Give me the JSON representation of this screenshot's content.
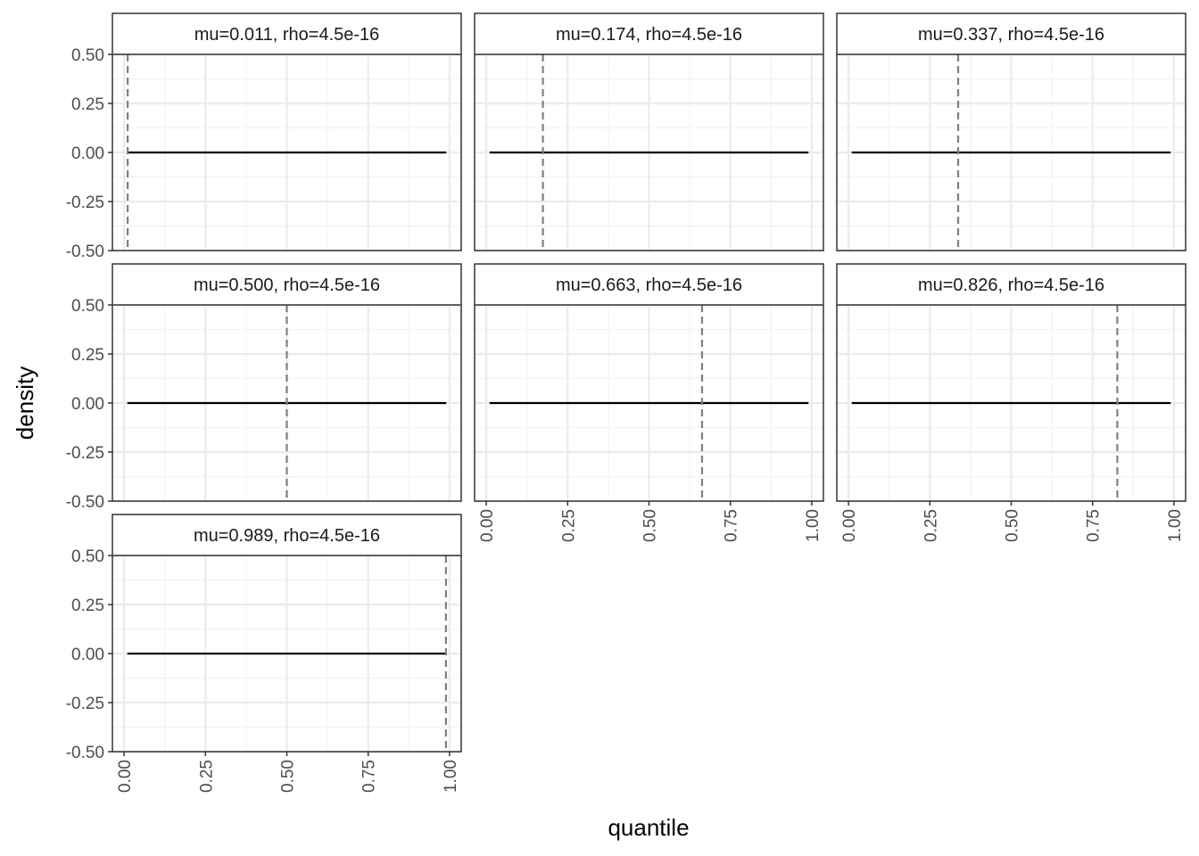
{
  "chart_data": {
    "type": "line",
    "xlabel": "quantile",
    "ylabel": "density",
    "xlim": [
      -0.0359,
      1.0359
    ],
    "ylim": [
      -0.5,
      0.5
    ],
    "x_ticks": [
      0.0,
      0.25,
      0.5,
      0.75,
      1.0
    ],
    "x_tick_labels": [
      "0.00",
      "0.25",
      "0.50",
      "0.75",
      "1.00"
    ],
    "y_ticks": [
      0.5,
      0.25,
      0.0,
      -0.25,
      -0.5
    ],
    "y_tick_labels": [
      "0.50",
      "0.25",
      "0.00",
      "-0.25",
      "-0.50"
    ],
    "grid": true,
    "layout": "facet_wrap 3 columns",
    "panels": [
      {
        "label": "mu=0.011, rho=4.5e-16",
        "mu": 0.011,
        "density_x": [
          0.01,
          0.99
        ],
        "density_y": [
          0,
          0
        ]
      },
      {
        "label": "mu=0.174, rho=4.5e-16",
        "mu": 0.174,
        "density_x": [
          0.01,
          0.99
        ],
        "density_y": [
          0,
          0
        ]
      },
      {
        "label": "mu=0.337, rho=4.5e-16",
        "mu": 0.337,
        "density_x": [
          0.01,
          0.99
        ],
        "density_y": [
          0,
          0
        ]
      },
      {
        "label": "mu=0.500, rho=4.5e-16",
        "mu": 0.5,
        "density_x": [
          0.01,
          0.99
        ],
        "density_y": [
          0,
          0
        ]
      },
      {
        "label": "mu=0.663, rho=4.5e-16",
        "mu": 0.663,
        "density_x": [
          0.01,
          0.99
        ],
        "density_y": [
          0,
          0
        ]
      },
      {
        "label": "mu=0.826, rho=4.5e-16",
        "mu": 0.826,
        "density_x": [
          0.01,
          0.99
        ],
        "density_y": [
          0,
          0
        ]
      },
      {
        "label": "mu=0.989, rho=4.5e-16",
        "mu": 0.989,
        "density_x": [
          0.01,
          0.99
        ],
        "density_y": [
          0,
          0
        ]
      }
    ],
    "colors": {
      "density_line": "#000000",
      "mu_line": "#7f7f7f",
      "major_grid": "#ebebeb",
      "minor_grid": "#f2f2f2",
      "border": "#333333"
    }
  }
}
